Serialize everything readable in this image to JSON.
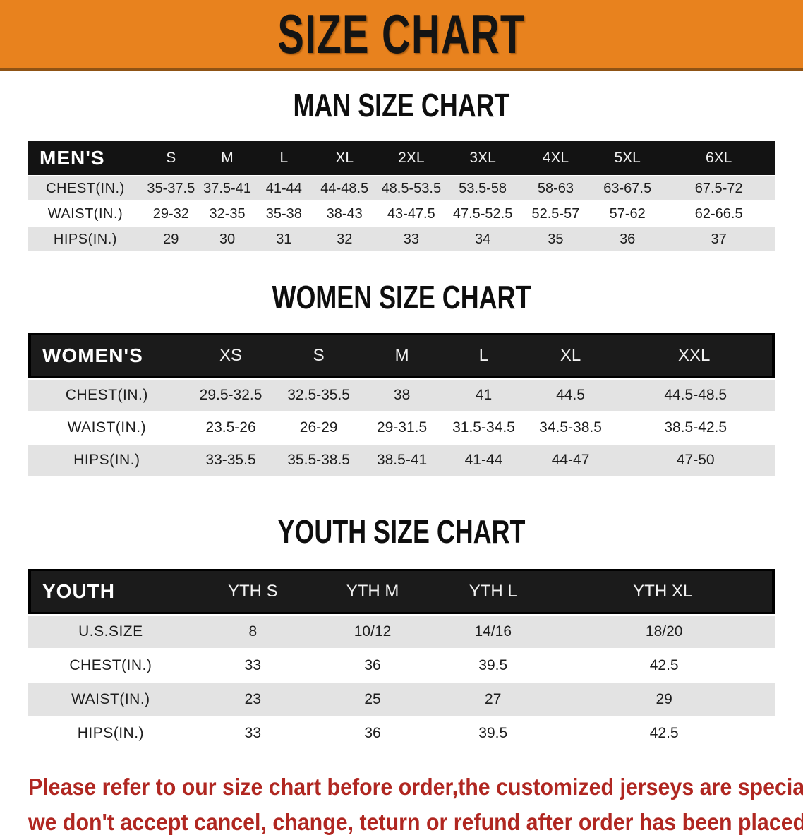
{
  "banner": {
    "title": "SIZE CHART"
  },
  "colors": {
    "banner_bg": "#E8821E",
    "table_header_bg": "#141414",
    "row_alt_bg": "#E3E3E3",
    "disclaimer_red": "#B02721"
  },
  "sections": [
    {
      "title": "MAN SIZE CHART",
      "table": {
        "name": "mens",
        "header_label": "MEN'S",
        "columns": [
          "S",
          "M",
          "L",
          "XL",
          "2XL",
          "3XL",
          "4XL",
          "5XL",
          "6XL"
        ],
        "rows": [
          {
            "label": "CHEST(IN.)",
            "values": [
              "35-37.5",
              "37.5-41",
              "41-44",
              "44-48.5",
              "48.5-53.5",
              "53.5-58",
              "58-63",
              "63-67.5",
              "67.5-72"
            ]
          },
          {
            "label": "WAIST(IN.)",
            "values": [
              "29-32",
              "32-35",
              "35-38",
              "38-43",
              "43-47.5",
              "47.5-52.5",
              "52.5-57",
              "57-62",
              "62-66.5"
            ]
          },
          {
            "label": "HIPS(IN.)",
            "values": [
              "29",
              "30",
              "31",
              "32",
              "33",
              "34",
              "35",
              "36",
              "37"
            ]
          }
        ]
      }
    },
    {
      "title": "WOMEN SIZE CHART",
      "table": {
        "name": "womens",
        "header_label": "WOMEN'S",
        "columns": [
          "XS",
          "S",
          "M",
          "L",
          "XL",
          "XXL"
        ],
        "rows": [
          {
            "label": "CHEST(IN.)",
            "values": [
              "29.5-32.5",
              "32.5-35.5",
              "38",
              "41",
              "44.5",
              "44.5-48.5"
            ]
          },
          {
            "label": "WAIST(IN.)",
            "values": [
              "23.5-26",
              "26-29",
              "29-31.5",
              "31.5-34.5",
              "34.5-38.5",
              "38.5-42.5"
            ]
          },
          {
            "label": "HIPS(IN.)",
            "values": [
              "33-35.5",
              "35.5-38.5",
              "38.5-41",
              "41-44",
              "44-47",
              "47-50"
            ]
          }
        ]
      }
    },
    {
      "title": "YOUTH SIZE CHART",
      "table": {
        "name": "youth",
        "header_label": "YOUTH",
        "columns": [
          "YTH S",
          "YTH M",
          "YTH L",
          "YTH XL"
        ],
        "rows": [
          {
            "label": "U.S.SIZE",
            "values": [
              "8",
              "10/12",
              "14/16",
              "18/20"
            ]
          },
          {
            "label": "CHEST(IN.)",
            "values": [
              "33",
              "36",
              "39.5",
              "42.5"
            ]
          },
          {
            "label": "WAIST(IN.)",
            "values": [
              "23",
              "25",
              "27",
              "29"
            ]
          },
          {
            "label": "HIPS(IN.)",
            "values": [
              "33",
              "36",
              "39.5",
              "42.5"
            ]
          }
        ]
      }
    }
  ],
  "disclaimer": {
    "line1": "Please refer to our size chart before order,the customized jerseys are special products,",
    "line2": "we don't accept cancel, change, teturn or refund after order has been placed!"
  }
}
